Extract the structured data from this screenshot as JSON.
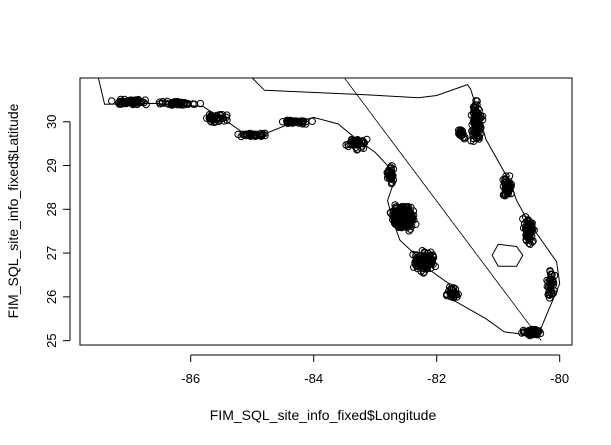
{
  "chart_data": {
    "type": "scatter",
    "title": "",
    "xlabel": "FIM_SQL_site_info_fixed$Longitude",
    "ylabel": "FIM_SQL_site_info_fixed$Latitude",
    "xlim": [
      -87.8,
      -79.8
    ],
    "ylim": [
      24.9,
      31.0
    ],
    "xticks": [
      -86,
      -84,
      -82,
      -80
    ],
    "yticks": [
      25,
      26,
      27,
      28,
      29,
      30
    ],
    "xtick_labels": [
      "-86",
      "-84",
      "-82",
      "-80"
    ],
    "ytick_labels": [
      "25",
      "26",
      "27",
      "28",
      "29",
      "30"
    ],
    "grid": false,
    "legend": "none",
    "marker": "open circle",
    "colors": {
      "points": "#000000",
      "lines": "#000000",
      "background": "#ffffff"
    },
    "coastline": [
      [
        -87.5,
        31.0
      ],
      [
        -87.4,
        30.4
      ],
      [
        -86.6,
        30.42
      ],
      [
        -85.8,
        30.35
      ],
      [
        -85.4,
        30.0
      ],
      [
        -85.1,
        29.7
      ],
      [
        -84.8,
        29.72
      ],
      [
        -84.4,
        29.95
      ],
      [
        -84.0,
        30.1
      ],
      [
        -83.6,
        29.95
      ],
      [
        -83.3,
        29.6
      ],
      [
        -83.0,
        29.3
      ],
      [
        -82.8,
        29.0
      ],
      [
        -82.7,
        28.6
      ],
      [
        -82.8,
        28.2
      ],
      [
        -82.7,
        27.7
      ],
      [
        -82.6,
        27.3
      ],
      [
        -82.3,
        26.9
      ],
      [
        -82.1,
        26.6
      ],
      [
        -81.8,
        26.3
      ],
      [
        -81.7,
        25.9
      ],
      [
        -81.2,
        25.5
      ],
      [
        -80.9,
        25.2
      ],
      [
        -80.6,
        25.15
      ],
      [
        -80.3,
        25.3
      ],
      [
        -80.15,
        25.8
      ],
      [
        -80.0,
        26.3
      ],
      [
        -80.05,
        26.8
      ],
      [
        -80.3,
        27.3
      ],
      [
        -80.5,
        27.7
      ],
      [
        -80.7,
        28.2
      ],
      [
        -80.8,
        28.6
      ],
      [
        -81.0,
        29.1
      ],
      [
        -81.2,
        29.6
      ],
      [
        -81.3,
        30.1
      ],
      [
        -81.45,
        30.75
      ],
      [
        -81.5,
        30.85
      ],
      [
        -82.0,
        30.6
      ],
      [
        -82.3,
        30.55
      ],
      [
        -83.2,
        30.62
      ],
      [
        -84.8,
        30.72
      ],
      [
        -85.0,
        31.0
      ]
    ],
    "diagonal_line": [
      [
        -83.5,
        31.0
      ],
      [
        -80.3,
        25.0
      ]
    ],
    "lake": [
      [
        -81.0,
        27.2
      ],
      [
        -80.7,
        27.15
      ],
      [
        -80.6,
        26.95
      ],
      [
        -80.7,
        26.7
      ],
      [
        -81.0,
        26.7
      ],
      [
        -81.1,
        26.95
      ],
      [
        -81.0,
        27.2
      ]
    ],
    "point_clusters": [
      {
        "x": -87.0,
        "y": 30.45,
        "count": 60,
        "spread": [
          0.45,
          0.08
        ]
      },
      {
        "x": -86.2,
        "y": 30.42,
        "count": 50,
        "spread": [
          0.4,
          0.06
        ]
      },
      {
        "x": -85.6,
        "y": 30.1,
        "count": 40,
        "spread": [
          0.25,
          0.12
        ]
      },
      {
        "x": -85.0,
        "y": 29.7,
        "count": 40,
        "spread": [
          0.3,
          0.06
        ]
      },
      {
        "x": -84.3,
        "y": 30.0,
        "count": 40,
        "spread": [
          0.35,
          0.06
        ]
      },
      {
        "x": -83.3,
        "y": 29.5,
        "count": 40,
        "spread": [
          0.2,
          0.2
        ]
      },
      {
        "x": -82.75,
        "y": 28.8,
        "count": 30,
        "spread": [
          0.08,
          0.3
        ]
      },
      {
        "x": -82.55,
        "y": 27.8,
        "count": 250,
        "spread": [
          0.25,
          0.35
        ]
      },
      {
        "x": -82.2,
        "y": 26.8,
        "count": 120,
        "spread": [
          0.22,
          0.3
        ]
      },
      {
        "x": -81.75,
        "y": 26.1,
        "count": 30,
        "spread": [
          0.12,
          0.2
        ]
      },
      {
        "x": -80.45,
        "y": 25.2,
        "count": 70,
        "spread": [
          0.2,
          0.1
        ]
      },
      {
        "x": -80.15,
        "y": 26.3,
        "count": 40,
        "spread": [
          0.08,
          0.5
        ]
      },
      {
        "x": -80.5,
        "y": 27.5,
        "count": 60,
        "spread": [
          0.12,
          0.45
        ]
      },
      {
        "x": -80.85,
        "y": 28.5,
        "count": 50,
        "spread": [
          0.1,
          0.35
        ]
      },
      {
        "x": -81.35,
        "y": 30.0,
        "count": 100,
        "spread": [
          0.12,
          0.6
        ]
      },
      {
        "x": -81.6,
        "y": 29.7,
        "count": 20,
        "spread": [
          0.1,
          0.15
        ]
      }
    ]
  }
}
